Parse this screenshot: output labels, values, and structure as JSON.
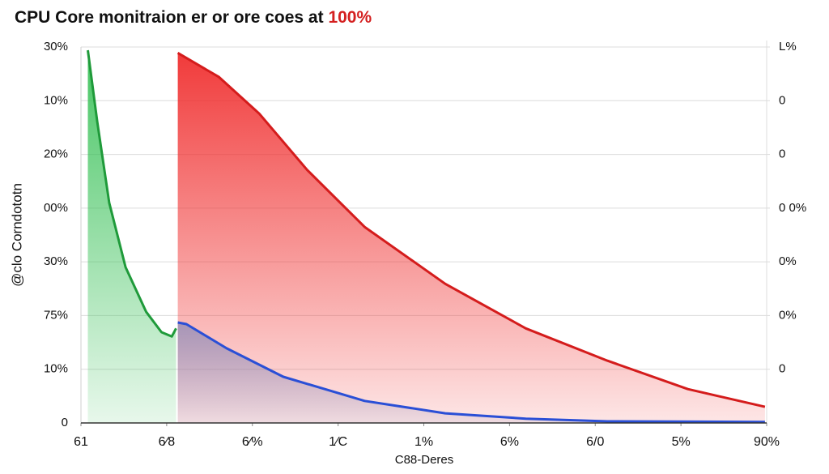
{
  "chart_data": {
    "type": "area",
    "title": "CPU Core monitraion er or ore coes at ",
    "title_highlight": "100%",
    "title_highlight_color": "#d42020",
    "ylabel": "@clo Corndototn",
    "xlabel": "C88-Deres",
    "xlim": [
      0,
      8
    ],
    "xticks": [
      {
        "value": 0,
        "label": "61"
      },
      {
        "value": 1,
        "label": "6⁄8"
      },
      {
        "value": 2,
        "label": "6⁄%"
      },
      {
        "value": 3,
        "label": "1⁄C"
      },
      {
        "value": 4,
        "label": "1%"
      },
      {
        "value": 5,
        "label": "6%"
      },
      {
        "value": 6,
        "label": "6/0"
      },
      {
        "value": 7,
        "label": "5%"
      },
      {
        "value": 8,
        "label": "90%"
      }
    ],
    "ylim": [
      0,
      7
    ],
    "yticks": [
      0,
      {
        "value": 1,
        "label": "10%"
      },
      {
        "value": 2,
        "label": "75%"
      },
      {
        "value": 3,
        "label": "30%"
      },
      {
        "value": 4,
        "label": "00%"
      },
      {
        "value": 5,
        "label": "20%"
      },
      {
        "value": 6,
        "label": "10%"
      },
      {
        "value": 7,
        "label": "30%"
      }
    ],
    "y2lim": [
      0,
      7
    ],
    "y2ticks": [
      {
        "value": 1,
        "label": "0"
      },
      {
        "value": 2,
        "label": "0%"
      },
      {
        "value": 3,
        "label": "0%"
      },
      {
        "value": 4,
        "label": "0 0%"
      },
      {
        "value": 5,
        "label": "0"
      },
      {
        "value": 6,
        "label": "0"
      },
      {
        "value": 7,
        "label": "L%"
      }
    ],
    "grid": true,
    "series": [
      {
        "color": "#1f9a3a",
        "fill": "#3cc25a",
        "x": [
          0.08,
          0.19,
          0.33,
          0.52,
          0.76,
          0.94,
          1.06,
          1.11
        ],
        "values": [
          6.94,
          5.61,
          4.1,
          2.9,
          2.07,
          1.69,
          1.61,
          1.76
        ]
      },
      {
        "color": "#d41c1c",
        "fill": "#f03030",
        "x": [
          1.13,
          1.61,
          2.08,
          2.64,
          3.31,
          4.25,
          5.19,
          6.14,
          7.08,
          7.98
        ],
        "values": [
          6.89,
          6.44,
          5.76,
          4.71,
          3.65,
          2.59,
          1.76,
          1.16,
          0.63,
          0.3
        ]
      },
      {
        "color": "#2a4fd6",
        "fill": "#8a8ab8",
        "x": [
          1.13,
          1.23,
          1.7,
          2.36,
          3.31,
          4.25,
          5.19,
          6.14,
          7.98
        ],
        "values": [
          1.87,
          1.84,
          1.39,
          0.86,
          0.41,
          0.18,
          0.08,
          0.03,
          0.02
        ]
      }
    ]
  }
}
